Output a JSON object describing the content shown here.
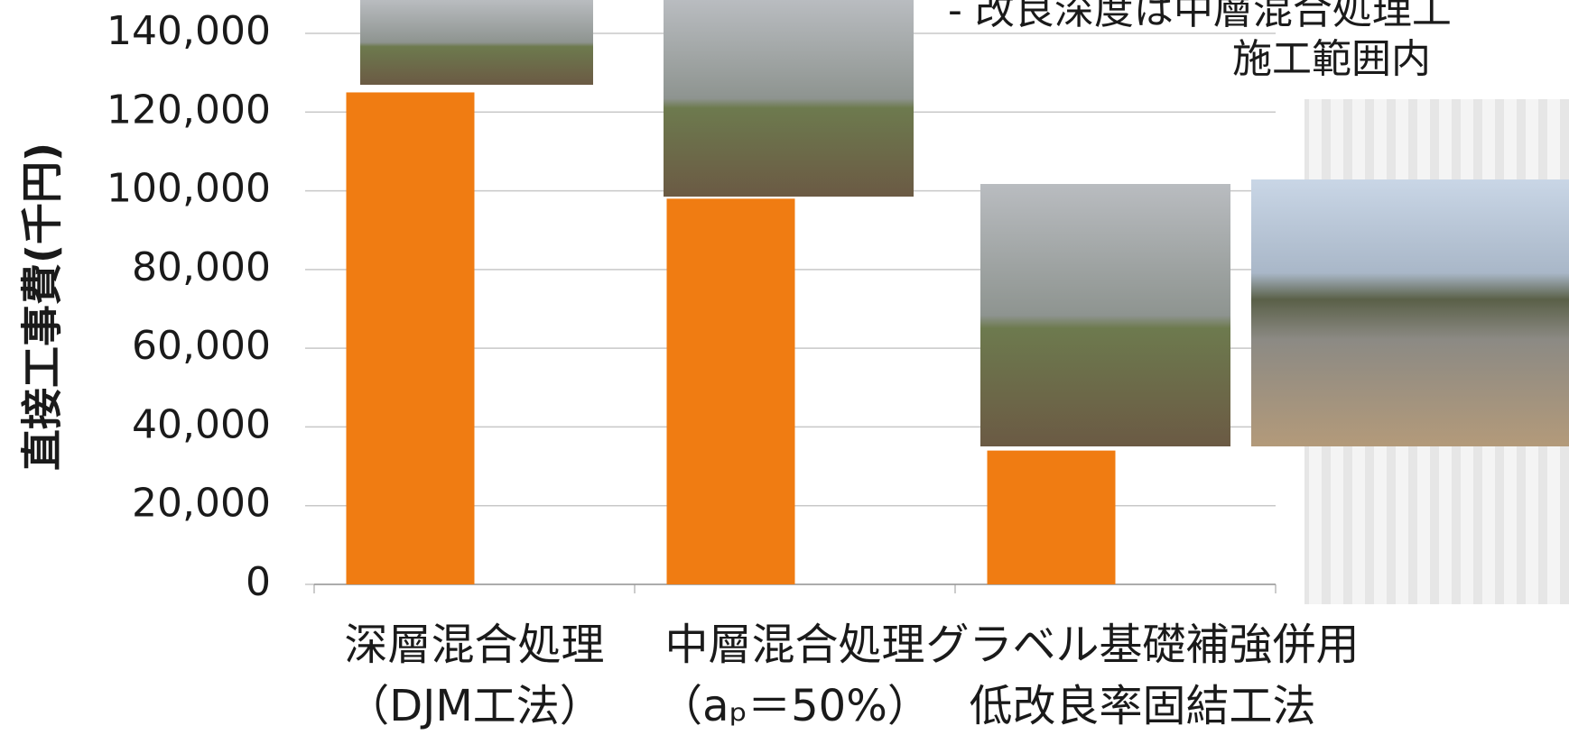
{
  "chart_data": {
    "type": "bar",
    "y_axis_label": "直接工事費(千円)",
    "annotations": [
      "- 改良深度は中層混合処理工",
      "施工範囲内"
    ],
    "categories": [
      [
        "深層混合処理",
        "（DJM工法）"
      ],
      [
        "中層混合処理",
        "（aₚ＝50%）"
      ],
      [
        "グラベル基礎補強併用",
        "低改良率固結工法"
      ]
    ],
    "values": [
      125000,
      98000,
      34000
    ],
    "color": "#f07c12",
    "ylim": [
      0,
      140000
    ],
    "yticks": [
      {
        "value": 0,
        "label": "0"
      },
      {
        "value": 20000,
        "label": "20,000"
      },
      {
        "value": 40000,
        "label": "40,000"
      },
      {
        "value": 60000,
        "label": "60,000"
      },
      {
        "value": 80000,
        "label": "80,000"
      },
      {
        "value": 100000,
        "label": "100,000"
      },
      {
        "value": 120000,
        "label": "120,000"
      },
      {
        "value": 140000,
        "label": "140,000"
      }
    ],
    "grid": true
  }
}
